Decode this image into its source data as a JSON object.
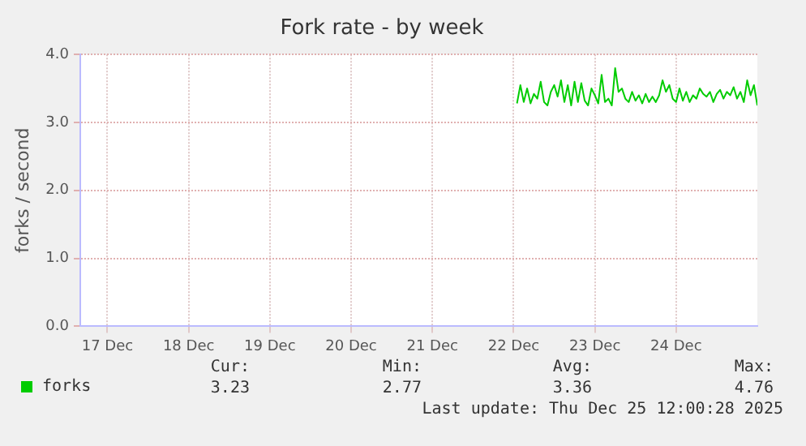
{
  "chart_data": {
    "type": "line",
    "title": "Fork rate - by week",
    "ylabel": "forks / second",
    "xlim": [
      "2025-12-17T04:00",
      "2025-12-25T12:00"
    ],
    "xticks": [
      {
        "value": "2025-12-17T12:00",
        "label": "17 Dec"
      },
      {
        "value": "2025-12-18T12:00",
        "label": "18 Dec"
      },
      {
        "value": "2025-12-19T12:00",
        "label": "19 Dec"
      },
      {
        "value": "2025-12-20T12:00",
        "label": "20 Dec"
      },
      {
        "value": "2025-12-21T12:00",
        "label": "21 Dec"
      },
      {
        "value": "2025-12-22T12:00",
        "label": "22 Dec"
      },
      {
        "value": "2025-12-23T12:00",
        "label": "23 Dec"
      },
      {
        "value": "2025-12-24T12:00",
        "label": "24 Dec"
      }
    ],
    "ylim": [
      0,
      4
    ],
    "yticks": [
      {
        "value": 0,
        "label": "0.0"
      },
      {
        "value": 1,
        "label": "1.0"
      },
      {
        "value": 2,
        "label": "2.0"
      },
      {
        "value": 3,
        "label": "3.0"
      },
      {
        "value": 4,
        "label": "4.0"
      }
    ],
    "grid": true,
    "legend": "bottom left",
    "marker": "none",
    "line_style": "solid",
    "x": [
      "2025-12-22T13:00",
      "2025-12-22T14:00",
      "2025-12-22T15:00",
      "2025-12-22T16:00",
      "2025-12-22T17:00",
      "2025-12-22T18:00",
      "2025-12-22T19:00",
      "2025-12-22T20:00",
      "2025-12-22T21:00",
      "2025-12-22T22:00",
      "2025-12-22T23:00",
      "2025-12-23T00:00",
      "2025-12-23T01:00",
      "2025-12-23T02:00",
      "2025-12-23T03:00",
      "2025-12-23T04:00",
      "2025-12-23T05:00",
      "2025-12-23T06:00",
      "2025-12-23T07:00",
      "2025-12-23T08:00",
      "2025-12-23T09:00",
      "2025-12-23T10:00",
      "2025-12-23T11:00",
      "2025-12-23T12:00",
      "2025-12-23T13:00",
      "2025-12-23T14:00",
      "2025-12-23T15:00",
      "2025-12-23T16:00",
      "2025-12-23T17:00",
      "2025-12-23T18:00",
      "2025-12-23T19:00",
      "2025-12-23T20:00",
      "2025-12-23T21:00",
      "2025-12-23T22:00",
      "2025-12-23T23:00",
      "2025-12-24T00:00",
      "2025-12-24T01:00",
      "2025-12-24T02:00",
      "2025-12-24T03:00",
      "2025-12-24T04:00",
      "2025-12-24T05:00",
      "2025-12-24T06:00",
      "2025-12-24T07:00",
      "2025-12-24T08:00",
      "2025-12-24T09:00",
      "2025-12-24T10:00",
      "2025-12-24T11:00",
      "2025-12-24T12:00",
      "2025-12-24T13:00",
      "2025-12-24T14:00",
      "2025-12-24T15:00",
      "2025-12-24T16:00",
      "2025-12-24T17:00",
      "2025-12-24T18:00",
      "2025-12-24T19:00",
      "2025-12-24T20:00",
      "2025-12-24T21:00",
      "2025-12-24T22:00",
      "2025-12-24T23:00",
      "2025-12-25T00:00",
      "2025-12-25T01:00",
      "2025-12-25T02:00",
      "2025-12-25T03:00",
      "2025-12-25T04:00",
      "2025-12-25T05:00",
      "2025-12-25T06:00",
      "2025-12-25T07:00",
      "2025-12-25T08:00",
      "2025-12-25T09:00",
      "2025-12-25T10:00",
      "2025-12-25T11:00",
      "2025-12-25T12:00"
    ],
    "series": [
      {
        "name": "forks",
        "color": "#00cc00",
        "values": [
          3.28,
          3.55,
          3.3,
          3.5,
          3.28,
          3.42,
          3.35,
          3.6,
          3.3,
          3.25,
          3.45,
          3.55,
          3.38,
          3.62,
          3.3,
          3.55,
          3.25,
          3.6,
          3.3,
          3.58,
          3.32,
          3.25,
          3.5,
          3.4,
          3.28,
          3.7,
          3.3,
          3.35,
          3.25,
          3.8,
          3.45,
          3.5,
          3.35,
          3.3,
          3.45,
          3.32,
          3.4,
          3.28,
          3.42,
          3.3,
          3.38,
          3.3,
          3.4,
          3.62,
          3.45,
          3.55,
          3.35,
          3.3,
          3.5,
          3.32,
          3.45,
          3.3,
          3.4,
          3.35,
          3.5,
          3.42,
          3.38,
          3.45,
          3.3,
          3.42,
          3.48,
          3.35,
          3.45,
          3.4,
          3.52,
          3.35,
          3.45,
          3.3,
          3.62,
          3.4,
          3.55,
          3.25
        ]
      }
    ],
    "annotations": [
      "Cur:",
      "Min:",
      "Avg:",
      "Max:",
      "3.23",
      "2.77",
      "3.36",
      "4.76",
      "Last update: Thu Dec 25 12:00:28 2025"
    ]
  }
}
